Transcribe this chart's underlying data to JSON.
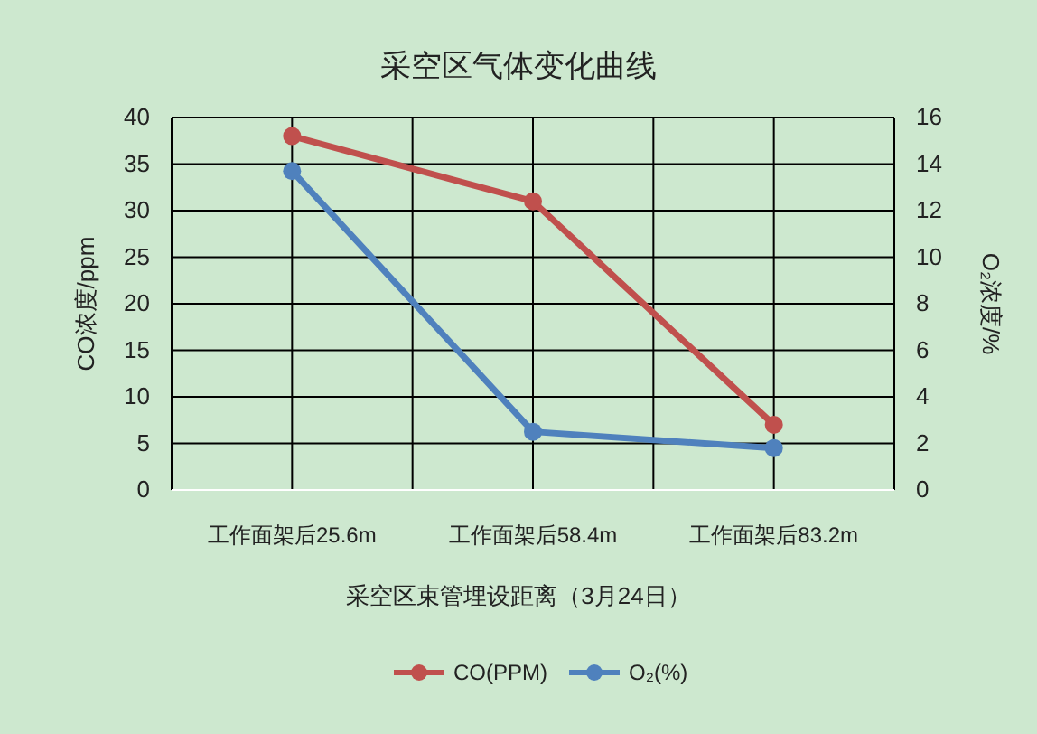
{
  "chart_data": {
    "type": "line",
    "title": "采空区气体变化曲线",
    "xlabel": "采空区束管埋设距离（3月24日）",
    "ylabel": "CO浓度/ppm",
    "y2label": "O₂浓度/%",
    "categories": [
      "工作面架后25.6m",
      "工作面架后58.4m",
      "工作面架后83.2m"
    ],
    "series": [
      {
        "name": "CO(PPM)",
        "color": "#c0504d",
        "values": [
          38,
          31,
          7
        ]
      },
      {
        "name": "O₂(%)",
        "color": "#4f81bd",
        "values": [
          13.7,
          2.5,
          1.8
        ],
        "axis": "y2"
      }
    ],
    "ylim": [
      0,
      40
    ],
    "yticks": [
      0,
      5,
      10,
      15,
      20,
      25,
      30,
      35,
      40
    ],
    "y2lim": [
      0,
      16
    ],
    "y2ticks": [
      0,
      2,
      4,
      6,
      8,
      10,
      12,
      14,
      16
    ],
    "grid": true,
    "legend": "bottom",
    "marker": "circle",
    "line_style": "solid"
  }
}
